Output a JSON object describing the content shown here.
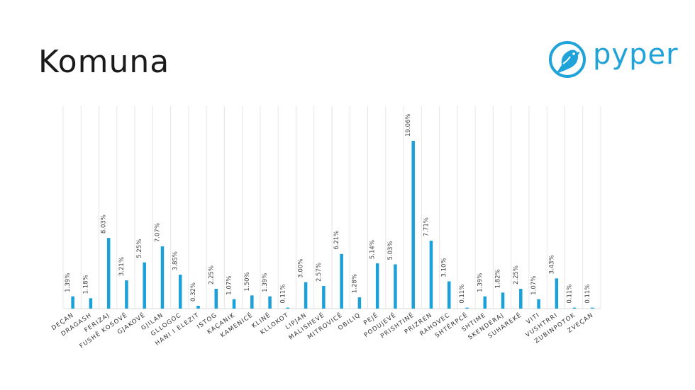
{
  "slide": {
    "title": "Komuna"
  },
  "logo": {
    "text": "pyper",
    "color": "#1fa3d8"
  },
  "colors": {
    "bar": "#1ba1da",
    "grid": "#e6e6e6"
  },
  "chart_data": {
    "type": "bar",
    "title": "",
    "xlabel": "",
    "ylabel": "",
    "ylim": [
      0,
      23
    ],
    "grid": "vertical",
    "categories": [
      "DEÇAN",
      "DRAGASH",
      "FERIZAJ",
      "FUSHË KOSOVË",
      "GJAKOVË",
      "GJILAN",
      "GLLOGOC",
      "HANI I ELEZIT",
      "ISTOG",
      "KAÇANIK",
      "KAMENICË",
      "KLINË",
      "KLLOKOT",
      "LIPJAN",
      "MALISHEVË",
      "MITROVICË",
      "OBILIQ",
      "PEJË",
      "PODUJEVË",
      "PRISHTINË",
      "PRIZREN",
      "RAHOVEC",
      "SHTËRPCË",
      "SHTIME",
      "SKENDERAJ",
      "SUHAREKË",
      "VITI",
      "VUSHTRRI",
      "ZUBINPOTOK",
      "ZVEÇAN"
    ],
    "values": [
      1.39,
      1.18,
      8.03,
      3.21,
      5.25,
      7.07,
      3.85,
      0.32,
      2.25,
      1.07,
      1.5,
      1.39,
      0.11,
      3.0,
      2.57,
      6.21,
      1.28,
      5.14,
      5.03,
      19.06,
      7.71,
      3.1,
      0.11,
      1.39,
      1.82,
      2.25,
      1.07,
      3.43,
      0.11,
      0.11
    ],
    "value_labels": [
      "1.39%",
      "1.18%",
      "8.03%",
      "3.21%",
      "5.25%",
      "7.07%",
      "3.85%",
      "0.32%",
      "2.25%",
      "1.07%",
      "1.50%",
      "1.39%",
      "0.11%",
      "3.00%",
      "2.57%",
      "6.21%",
      "1.28%",
      "5.14%",
      "5.03%",
      "19.06%",
      "7.71%",
      "3.10%",
      "0.11%",
      "1.39%",
      "1.82%",
      "2.25%",
      "1.07%",
      "3.43%",
      "0.11%",
      "0.11%"
    ]
  }
}
